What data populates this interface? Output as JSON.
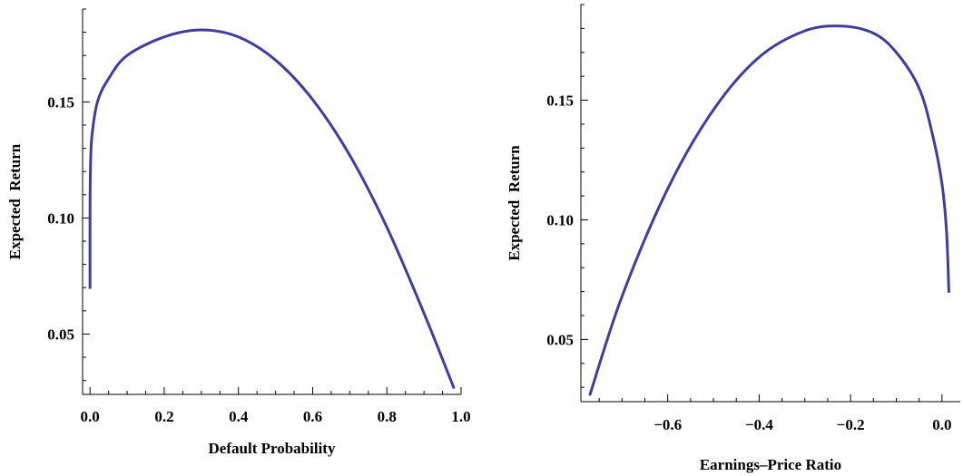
{
  "chart_data": [
    {
      "type": "line",
      "xlabel": "Default Probability",
      "ylabel": "Expected  Return",
      "xlim": [
        -0.02,
        1.0
      ],
      "ylim": [
        0.024,
        0.19
      ],
      "xticks": [
        "0.0",
        "0.2",
        "0.4",
        "0.6",
        "0.8",
        "1.0"
      ],
      "yticks": [
        "0.05",
        "0.10",
        "0.15"
      ],
      "series": [
        {
          "color": "#3d3d9e",
          "points": [
            [
              0.0,
              0.07
            ],
            [
              0.0,
              0.1
            ],
            [
              0.001,
              0.12
            ],
            [
              0.005,
              0.135
            ],
            [
              0.02,
              0.15
            ],
            [
              0.05,
              0.16
            ],
            [
              0.1,
              0.17
            ],
            [
              0.2,
              0.178
            ],
            [
              0.3,
              0.181
            ],
            [
              0.4,
              0.178
            ],
            [
              0.5,
              0.168
            ],
            [
              0.6,
              0.151
            ],
            [
              0.7,
              0.127
            ],
            [
              0.8,
              0.096
            ],
            [
              0.9,
              0.059
            ],
            [
              0.98,
              0.027
            ]
          ]
        }
      ]
    },
    {
      "type": "line",
      "xlabel": "Earnings–Price Ratio",
      "ylabel": "Expected  Return",
      "xlim": [
        -0.79,
        0.04
      ],
      "ylim": [
        0.024,
        0.19
      ],
      "xticks": [
        "−0.6",
        "−0.4",
        "−0.2",
        "0.0"
      ],
      "yticks": [
        "0.05",
        "0.10",
        "0.15"
      ],
      "series": [
        {
          "color": "#3d3d9e",
          "points": [
            [
              -0.77,
              0.027
            ],
            [
              -0.7,
              0.068
            ],
            [
              -0.6,
              0.113
            ],
            [
              -0.5,
              0.146
            ],
            [
              -0.4,
              0.168
            ],
            [
              -0.3,
              0.179
            ],
            [
              -0.22,
              0.181
            ],
            [
              -0.15,
              0.178
            ],
            [
              -0.1,
              0.17
            ],
            [
              -0.05,
              0.155
            ],
            [
              -0.02,
              0.135
            ],
            [
              0.0,
              0.115
            ],
            [
              0.01,
              0.095
            ],
            [
              0.015,
              0.07
            ]
          ]
        }
      ]
    }
  ]
}
